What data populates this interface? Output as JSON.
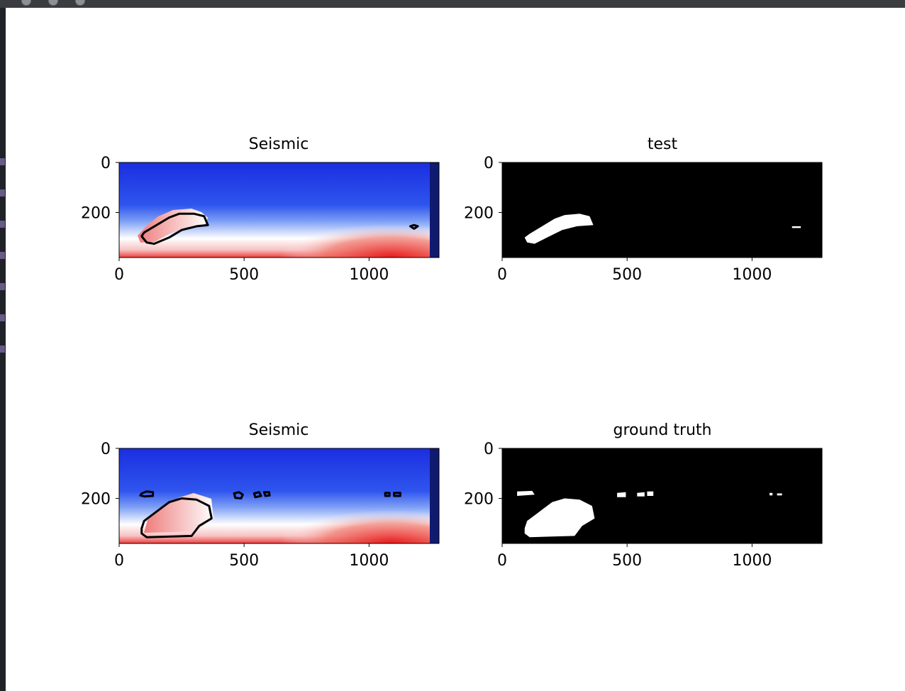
{
  "window": {
    "buttons": [
      "close",
      "minimize",
      "maximize"
    ]
  },
  "chart_data": [
    {
      "type": "heatmap",
      "title": "Seismic",
      "colormap": "bwr",
      "xlim": [
        0,
        1280
      ],
      "ylim": [
        380,
        0
      ],
      "xticks": [
        0,
        500,
        1000
      ],
      "yticks": [
        0,
        200
      ],
      "overlay": "contour of predicted salt mask",
      "contours": [
        {
          "points": [
            [
              110,
              320
            ],
            [
              90,
              295
            ],
            [
              100,
              280
            ],
            [
              150,
              250
            ],
            [
              200,
              220
            ],
            [
              240,
              205
            ],
            [
              300,
              205
            ],
            [
              340,
              215
            ],
            [
              355,
              250
            ],
            [
              310,
              255
            ],
            [
              250,
              270
            ],
            [
              200,
              300
            ],
            [
              140,
              325
            ]
          ]
        },
        {
          "points": [
            [
              1165,
              255
            ],
            [
              1180,
              250
            ],
            [
              1195,
              255
            ],
            [
              1180,
              265
            ]
          ]
        }
      ]
    },
    {
      "type": "heatmap",
      "title": "test",
      "colormap": "gray",
      "xlim": [
        0,
        1280
      ],
      "ylim": [
        380,
        0
      ],
      "xticks": [
        0,
        500,
        1000
      ],
      "yticks": [
        0,
        200
      ],
      "masks": [
        {
          "points": [
            [
              100,
              320
            ],
            [
              90,
              300
            ],
            [
              110,
              285
            ],
            [
              160,
              255
            ],
            [
              210,
              225
            ],
            [
              250,
              210
            ],
            [
              310,
              205
            ],
            [
              350,
              215
            ],
            [
              365,
              250
            ],
            [
              300,
              255
            ],
            [
              240,
              270
            ],
            [
              180,
              300
            ],
            [
              130,
              325
            ]
          ]
        },
        {
          "points": [
            [
              1160,
              255
            ],
            [
              1195,
              255
            ],
            [
              1195,
              262
            ],
            [
              1160,
              262
            ]
          ]
        }
      ]
    },
    {
      "type": "heatmap",
      "title": "Seismic",
      "colormap": "bwr",
      "xlim": [
        0,
        1280
      ],
      "ylim": [
        380,
        0
      ],
      "xticks": [
        0,
        500,
        1000
      ],
      "yticks": [
        0,
        200
      ],
      "overlay": "contour of ground truth mask",
      "contours": [
        {
          "points": [
            [
              90,
              180
            ],
            [
              110,
              172
            ],
            [
              135,
              175
            ],
            [
              135,
              190
            ],
            [
              100,
              192
            ],
            [
              85,
              188
            ]
          ]
        },
        {
          "points": [
            [
              90,
              320
            ],
            [
              100,
              290
            ],
            [
              140,
              260
            ],
            [
              200,
              215
            ],
            [
              250,
              200
            ],
            [
              310,
              205
            ],
            [
              360,
              230
            ],
            [
              370,
              280
            ],
            [
              320,
              310
            ],
            [
              290,
              350
            ],
            [
              110,
              355
            ],
            [
              90,
              340
            ]
          ]
        },
        {
          "points": [
            [
              460,
              180
            ],
            [
              480,
              175
            ],
            [
              495,
              185
            ],
            [
              488,
              200
            ],
            [
              465,
              198
            ]
          ]
        },
        {
          "points": [
            [
              540,
              180
            ],
            [
              560,
              175
            ],
            [
              568,
              190
            ],
            [
              545,
              195
            ]
          ]
        },
        {
          "points": [
            [
              580,
              175
            ],
            [
              600,
              175
            ],
            [
              602,
              188
            ],
            [
              585,
              190
            ]
          ]
        },
        {
          "points": [
            [
              1065,
              178
            ],
            [
              1082,
              178
            ],
            [
              1082,
              190
            ],
            [
              1065,
              190
            ]
          ]
        },
        {
          "points": [
            [
              1100,
              178
            ],
            [
              1125,
              178
            ],
            [
              1125,
              190
            ],
            [
              1100,
              190
            ]
          ]
        }
      ]
    },
    {
      "type": "heatmap",
      "title": "ground truth",
      "colormap": "gray",
      "xlim": [
        0,
        1280
      ],
      "ylim": [
        380,
        0
      ],
      "xticks": [
        0,
        500,
        1000
      ],
      "yticks": [
        0,
        200
      ],
      "masks": [
        {
          "points": [
            [
              60,
              172
            ],
            [
              120,
              170
            ],
            [
              130,
              185
            ],
            [
              60,
              190
            ]
          ]
        },
        {
          "points": [
            [
              90,
              320
            ],
            [
              100,
              290
            ],
            [
              140,
              260
            ],
            [
              200,
              215
            ],
            [
              250,
              200
            ],
            [
              310,
              205
            ],
            [
              360,
              230
            ],
            [
              370,
              280
            ],
            [
              320,
              310
            ],
            [
              290,
              350
            ],
            [
              110,
              355
            ],
            [
              90,
              340
            ]
          ]
        },
        {
          "points": [
            [
              460,
              178
            ],
            [
              495,
              175
            ],
            [
              495,
              195
            ],
            [
              460,
              195
            ]
          ]
        },
        {
          "points": [
            [
              540,
              178
            ],
            [
              570,
              175
            ],
            [
              570,
              192
            ],
            [
              540,
              192
            ]
          ]
        },
        {
          "points": [
            [
              580,
              172
            ],
            [
              605,
              172
            ],
            [
              605,
              190
            ],
            [
              580,
              190
            ]
          ]
        },
        {
          "points": [
            [
              1070,
              178
            ],
            [
              1082,
              178
            ],
            [
              1082,
              188
            ],
            [
              1070,
              188
            ]
          ]
        },
        {
          "points": [
            [
              1100,
              180
            ],
            [
              1120,
              180
            ],
            [
              1120,
              188
            ],
            [
              1100,
              188
            ]
          ]
        }
      ]
    }
  ]
}
